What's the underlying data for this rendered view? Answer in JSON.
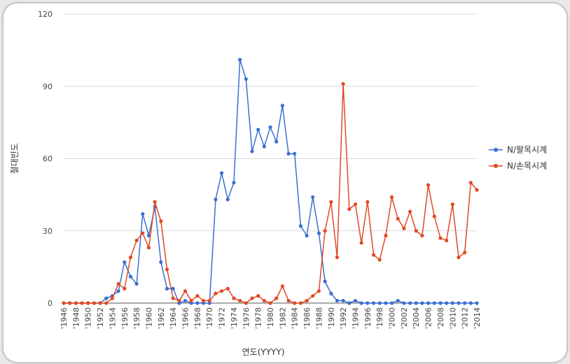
{
  "chart_data": {
    "type": "line",
    "xlabel": "연도(YYYY)",
    "ylabel": "절대빈도",
    "ylim": [
      0,
      120
    ],
    "yticks": [
      0,
      30,
      60,
      90,
      120
    ],
    "grid": true,
    "legend_position": "right",
    "x": [
      "1946",
      "1947",
      "1948",
      "1949",
      "1950",
      "1951",
      "1952",
      "1953",
      "1954",
      "1955",
      "1956",
      "1957",
      "1958",
      "1959",
      "1960",
      "1961",
      "1962",
      "1963",
      "1964",
      "1965",
      "1966",
      "1967",
      "1968",
      "1969",
      "1970",
      "1971",
      "1972",
      "1973",
      "1974",
      "1975",
      "1976",
      "1977",
      "1978",
      "1979",
      "1980",
      "1981",
      "1982",
      "1983",
      "1984",
      "1985",
      "1986",
      "1987",
      "1988",
      "1989",
      "1990",
      "1991",
      "1992",
      "1993",
      "1994",
      "1995",
      "1996",
      "1997",
      "1998",
      "1999",
      "2000",
      "2001",
      "2002",
      "2003",
      "2004",
      "2005",
      "2006",
      "2007",
      "2008",
      "2009",
      "2010",
      "2011",
      "2012",
      "2013",
      "2014"
    ],
    "xtick_labels": [
      "'1946",
      "'1948",
      "'1950",
      "'1952",
      "'1954",
      "'1956",
      "'1958",
      "'1960",
      "'1962",
      "'1964",
      "'1966",
      "'1968",
      "'1970",
      "'1972",
      "'1974",
      "'1976",
      "'1978",
      "'1980",
      "'1982",
      "'1984",
      "'1986",
      "'1988",
      "'1990",
      "'1992",
      "'1994",
      "'1996",
      "'1998",
      "'2000",
      "'2002",
      "'2004",
      "'2006",
      "'2008",
      "'2010",
      "'2012",
      "'2014"
    ],
    "series": [
      {
        "name": "N/팔목시계",
        "color": "#3c6fd1",
        "values": [
          0,
          0,
          0,
          0,
          0,
          0,
          0,
          2,
          3,
          5,
          17,
          11,
          8,
          37,
          28,
          40,
          17,
          6,
          6,
          0,
          1,
          0,
          0,
          0,
          0,
          43,
          54,
          43,
          50,
          101,
          93,
          63,
          72,
          65,
          73,
          67,
          82,
          62,
          62,
          32,
          28,
          44,
          29,
          9,
          4,
          1,
          1,
          0,
          1,
          0,
          0,
          0,
          0,
          0,
          0,
          1,
          0,
          0,
          0,
          0,
          0,
          0,
          0,
          0,
          0,
          0,
          0,
          0,
          0
        ]
      },
      {
        "name": "N/손목시계",
        "color": "#e04a25",
        "values": [
          0,
          0,
          0,
          0,
          0,
          0,
          0,
          0,
          2,
          8,
          6,
          19,
          26,
          29,
          23,
          42,
          34,
          14,
          2,
          1,
          5,
          1,
          3,
          1,
          1,
          4,
          5,
          6,
          2,
          1,
          0,
          2,
          3,
          1,
          0,
          2,
          7,
          1,
          0,
          0,
          1,
          3,
          5,
          30,
          42,
          19,
          91,
          39,
          41,
          25,
          42,
          20,
          18,
          28,
          44,
          35,
          31,
          38,
          30,
          28,
          49,
          36,
          27,
          26,
          41,
          19,
          21,
          50,
          47
        ]
      }
    ]
  }
}
